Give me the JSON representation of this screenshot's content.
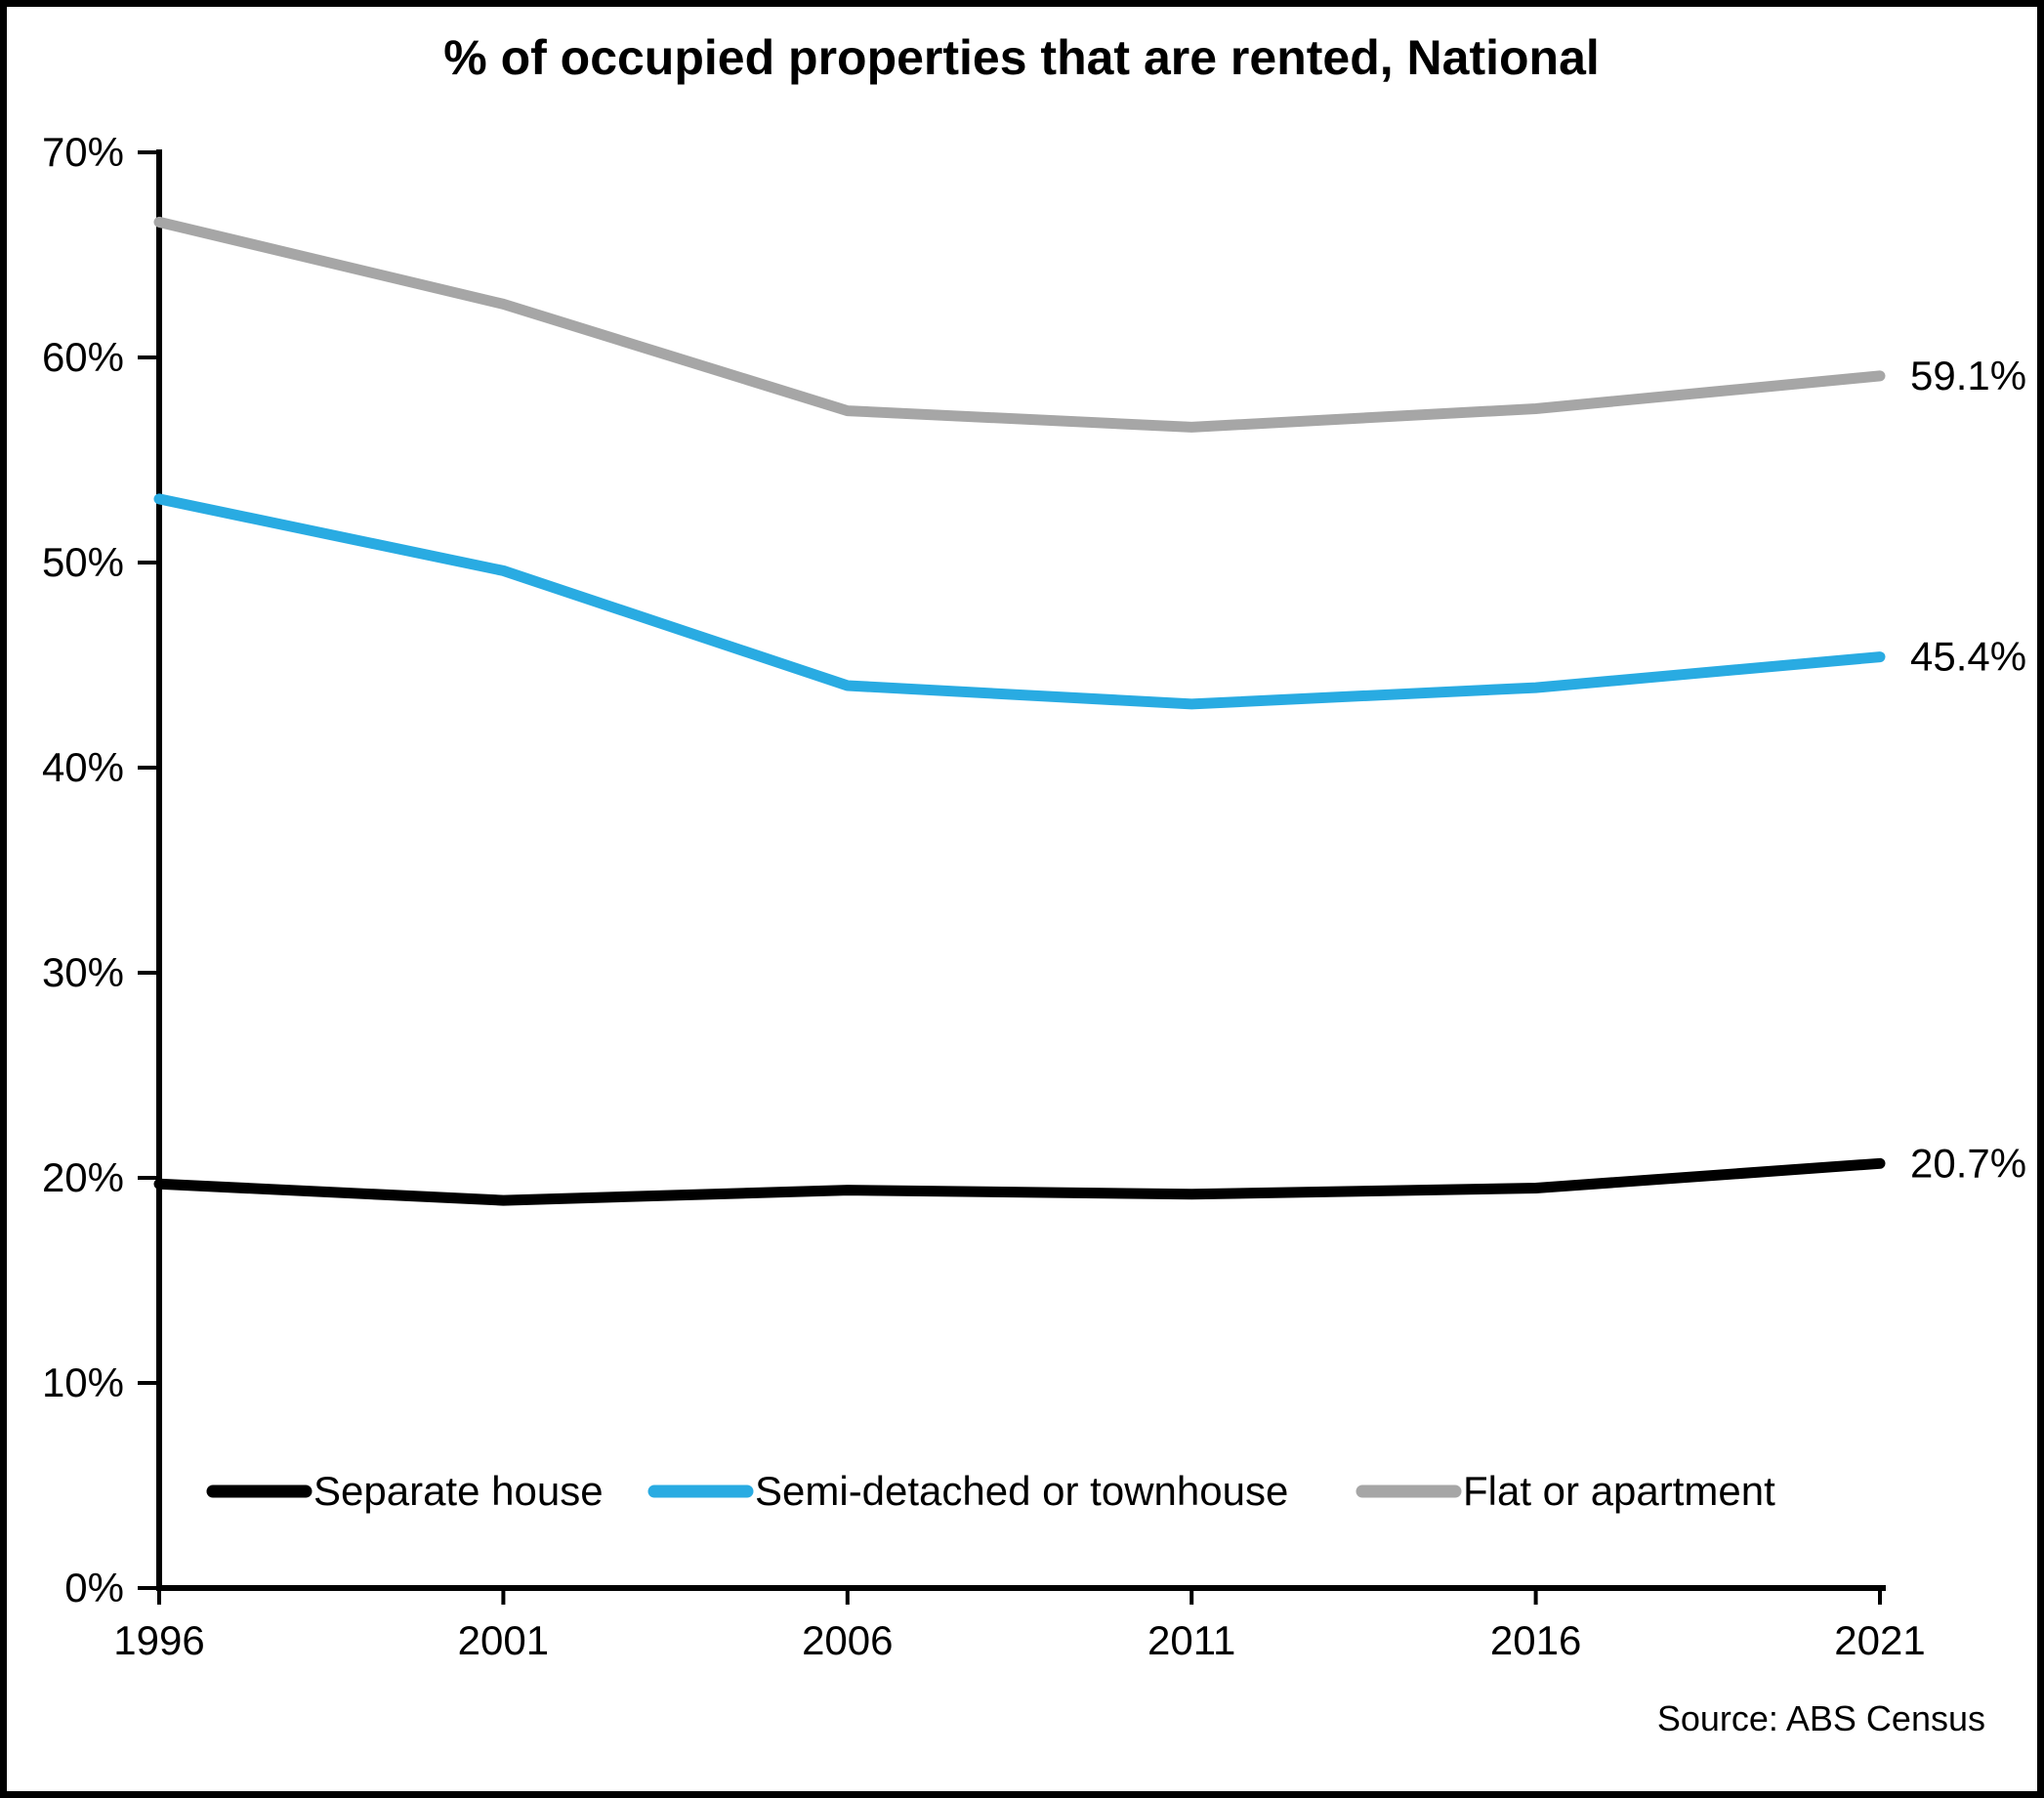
{
  "title": "% of occupied properties that are rented, National",
  "source_note": "Source: ABS Census",
  "colors": {
    "separate_house": "#000000",
    "semi_detached": "#29ABE2",
    "flat_apartment": "#A6A6A6",
    "axis": "#000000",
    "background": "#FFFFFF"
  },
  "chart_data": {
    "type": "line",
    "title": "% of occupied properties that are rented, National",
    "x": [
      1996,
      2001,
      2006,
      2011,
      2016,
      2021
    ],
    "x_tick_labels": [
      "1996",
      "2001",
      "2006",
      "2011",
      "2016",
      "2021"
    ],
    "ylim": [
      0,
      70
    ],
    "y_tick_step": 10,
    "grid": false,
    "legend_position": "bottom-inside",
    "y_ticks": [
      {
        "value": 0,
        "label": "0%"
      },
      {
        "value": 10,
        "label": "10%"
      },
      {
        "value": 20,
        "label": "20%"
      },
      {
        "value": 30,
        "label": "30%"
      },
      {
        "value": 40,
        "label": "40%"
      },
      {
        "value": 50,
        "label": "50%"
      },
      {
        "value": 60,
        "label": "60%"
      },
      {
        "value": 70,
        "label": "70%"
      }
    ],
    "series": [
      {
        "id": "separate-house",
        "name": "Separate house",
        "color": "#000000",
        "values": [
          19.7,
          18.9,
          19.4,
          19.2,
          19.5,
          20.7
        ],
        "end_label": "20.7%"
      },
      {
        "id": "semi-detached",
        "name": "Semi-detached or townhouse",
        "color": "#29ABE2",
        "values": [
          53.1,
          49.6,
          44.0,
          43.1,
          43.9,
          45.4
        ],
        "end_label": "45.4%"
      },
      {
        "id": "flat-apartment",
        "name": "Flat or apartment",
        "color": "#A6A6A6",
        "values": [
          66.6,
          62.6,
          57.4,
          56.6,
          57.5,
          59.1
        ],
        "end_label": "59.1%"
      }
    ]
  }
}
